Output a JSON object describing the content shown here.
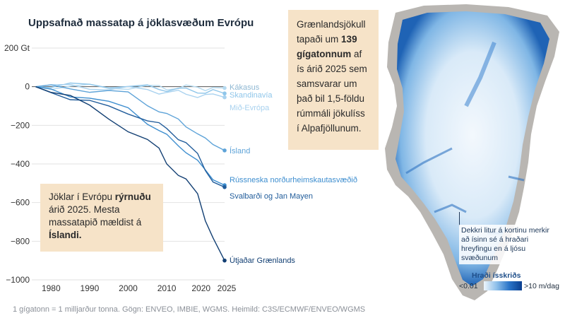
{
  "chart_data": {
    "type": "line",
    "title": "Uppsafnað massatap á jöklasvæðum Evrópu",
    "ylabel": "",
    "xlabel": "",
    "xlim": [
      1975,
      2025
    ],
    "ylim": [
      -1000,
      200
    ],
    "x_ticks": [
      1980,
      1990,
      2000,
      2010,
      2020,
      2025
    ],
    "y_ticks": [
      {
        "value": 200,
        "label": "200 Gt"
      },
      {
        "value": 0,
        "label": "0"
      },
      {
        "value": -200,
        "label": "−200"
      },
      {
        "value": -400,
        "label": "−400"
      },
      {
        "value": -600,
        "label": "−600"
      },
      {
        "value": -800,
        "label": "−800"
      },
      {
        "value": -1000,
        "label": "−1000"
      }
    ],
    "grid": true,
    "x": [
      1976,
      1980,
      1985,
      1990,
      1995,
      2000,
      2005,
      2008,
      2010,
      2013,
      2015,
      2018,
      2020,
      2022,
      2025
    ],
    "series": [
      {
        "name": "Kákasus",
        "color": "#b5daf0",
        "values": [
          0,
          0,
          -1,
          -1,
          -2,
          -2,
          -3,
          -3,
          -4,
          -4,
          -5,
          -5,
          -6,
          -6,
          -7
        ]
      },
      {
        "name": "Skandinavía",
        "color": "#8fc6ea",
        "values": [
          0,
          2,
          5,
          10,
          8,
          0,
          -5,
          -10,
          -12,
          -16,
          -18,
          -22,
          -26,
          -28,
          -35
        ]
      },
      {
        "name": "Mið-Evrópa",
        "color": "#a9d2ef",
        "values": [
          0,
          2,
          0,
          -3,
          -8,
          -12,
          -20,
          -24,
          -28,
          -33,
          -37,
          -42,
          -46,
          -50,
          -55
        ]
      },
      {
        "name": "Ísland",
        "color": "#5ea3d8",
        "values": [
          0,
          -5,
          -10,
          -15,
          -25,
          -40,
          -90,
          -120,
          -150,
          -175,
          -195,
          -240,
          -280,
          -300,
          -330
        ]
      },
      {
        "name": "Rússneska norðurheimskautasvæðið",
        "color": "#3e8ecf",
        "values": [
          0,
          -20,
          -40,
          -55,
          -90,
          -110,
          -180,
          -230,
          -260,
          -300,
          -330,
          -390,
          -440,
          -470,
          -510
        ]
      },
      {
        "name": "Svalbarði og Jan Mayen",
        "color": "#225d9b",
        "values": [
          0,
          -25,
          -55,
          -80,
          -110,
          -130,
          -170,
          -200,
          -220,
          -260,
          -290,
          -360,
          -430,
          -480,
          -520
        ]
      },
      {
        "name": "Útjaðar Grænlands",
        "color": "#123f73",
        "values": [
          0,
          -15,
          -45,
          -110,
          -165,
          -220,
          -280,
          -330,
          -390,
          -450,
          -490,
          -560,
          -680,
          -780,
          -900
        ]
      }
    ]
  },
  "callouts": {
    "europe": {
      "pre": "Jöklar í Evrópu ",
      "bold1": "rýrnuðu",
      "mid": " árið 2025. Mesta massatapið mældist á ",
      "bold2": "Íslandi."
    },
    "greenland": {
      "pre": "Grænlandsjökull tapaði um ",
      "bold": "139 gígatonnum",
      "post": " af ís árið 2025 sem samsvarar um það bil 1,5-földu rúmmáli jökulíss í Alpafjöllunum."
    }
  },
  "map": {
    "note": "Dekkri litur á kortinu merkir að ísinn sé á hraðari hreyfingu en á ljósu svæðunum",
    "legend_title": "Hraði ísskriðs",
    "legend_min": "<0.01",
    "legend_max": ">10 m/dag",
    "colors": {
      "ice_light": "#eef5fc",
      "ice_mid": "#8fc0ea",
      "ice_fast": "#0b3f8f",
      "rock": "#b9b6b2"
    }
  },
  "footnote": "1 gígatonn = 1 milljarður tonna. Gögn: ENVEO, IMBIE, WGMS. Heimild: C3S/ECMWF/ENVEO/WGMS"
}
